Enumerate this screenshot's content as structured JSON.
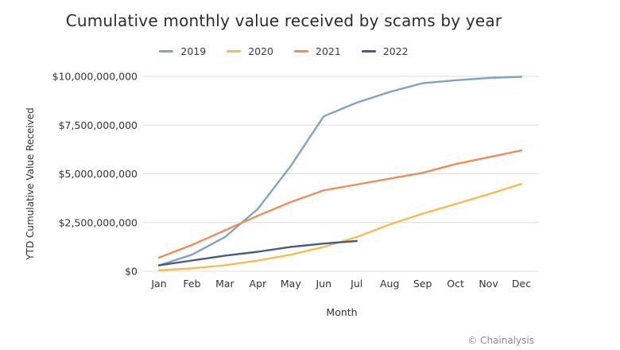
{
  "chart_data": {
    "type": "line",
    "title": "Cumulative monthly value received by scams by year",
    "xlabel": "Month",
    "ylabel": "YTD Cumulative Value Received",
    "categories": [
      "Jan",
      "Feb",
      "Mar",
      "Apr",
      "May",
      "Jun",
      "Jul",
      "Aug",
      "Sep",
      "Oct",
      "Nov",
      "Dec"
    ],
    "ylim": [
      0,
      10000000000
    ],
    "yticks": [
      0,
      2500000000,
      5000000000,
      7500000000,
      10000000000
    ],
    "ytick_labels": [
      "$0",
      "$2,500,000,000",
      "$5,000,000,000",
      "$7,500,000,000",
      "$10,000,000,000"
    ],
    "grid": true,
    "legend_position": "top",
    "series": [
      {
        "name": "2019",
        "color": "#7fa4c0",
        "values": [
          300000000,
          850000000,
          1750000000,
          3200000000,
          5400000000,
          7950000000,
          8650000000,
          9200000000,
          9650000000,
          9800000000,
          9920000000,
          9980000000
        ]
      },
      {
        "name": "2020",
        "color": "#f5bd4f",
        "values": [
          50000000,
          150000000,
          300000000,
          550000000,
          850000000,
          1250000000,
          1750000000,
          2400000000,
          2950000000,
          3450000000,
          3950000000,
          4480000000
        ]
      },
      {
        "name": "2021",
        "color": "#ef8c5b",
        "values": [
          700000000,
          1350000000,
          2100000000,
          2850000000,
          3550000000,
          4150000000,
          4450000000,
          4750000000,
          5050000000,
          5500000000,
          5850000000,
          6200000000
        ]
      },
      {
        "name": "2022",
        "color": "#4a5a80",
        "values": [
          300000000,
          550000000,
          800000000,
          1000000000,
          1250000000,
          1420000000,
          1550000000,
          null,
          null,
          null,
          null,
          null
        ]
      }
    ]
  },
  "source_label": "© Chainalysis"
}
